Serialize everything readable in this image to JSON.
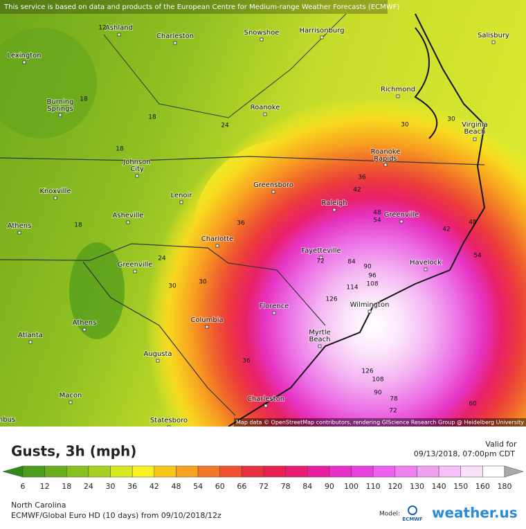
{
  "header": {
    "notice": "This service is based on data and products of the European Centre for Medium-range Weather Forecasts (ECMWF)"
  },
  "map": {
    "attribution": "Map data © OpenStreetMap contributors, rendering GIScience Research Group @ Heidelberg University",
    "cities": [
      [
        "Ashland"
      ],
      [
        "Charleston"
      ],
      [
        "Snowshoe"
      ],
      [
        "Harrisonburg"
      ],
      [
        "Salisbury"
      ],
      [
        "Lexington"
      ],
      [
        "Richmond"
      ],
      [
        "Burning",
        "Springs"
      ],
      [
        "Roanoke"
      ],
      [
        "Virginia",
        "Beach"
      ],
      [
        "Roanoke",
        "Rapids"
      ],
      [
        "Johnson",
        "City"
      ],
      [
        "Greensboro"
      ],
      [
        "Knoxville"
      ],
      [
        "Lenoir"
      ],
      [
        "Raleigh"
      ],
      [
        "Asheville"
      ],
      [
        "Greenville"
      ],
      [
        "Athens"
      ],
      [
        "Charlotte"
      ],
      [
        "Fayetteville"
      ],
      [
        "Havelock"
      ],
      [
        "Greenville"
      ],
      [
        "Wilmington"
      ],
      [
        "Florence"
      ],
      [
        "Athens"
      ],
      [
        "Columbia"
      ],
      [
        "Myrtle",
        "Beach"
      ],
      [
        "Atlanta"
      ],
      [
        "Augusta"
      ],
      [
        "Macon"
      ],
      [
        "Charleston"
      ],
      [
        "Statesboro"
      ],
      [
        "nbus"
      ]
    ],
    "contour_labels": [
      12,
      18,
      18,
      24,
      18,
      30,
      30,
      36,
      42,
      48,
      54,
      42,
      48,
      54,
      36,
      18,
      24,
      30,
      30,
      72,
      84,
      90,
      96,
      108,
      114,
      126,
      126,
      108,
      90,
      78,
      72,
      60,
      36
    ]
  },
  "legend": {
    "title": "Gusts, 3h (mph)",
    "valid_label": "Valid for",
    "valid_time": "09/13/2018, 07:00pm CDT",
    "labels": [
      6,
      12,
      18,
      24,
      30,
      36,
      42,
      48,
      54,
      60,
      66,
      72,
      78,
      84,
      90,
      100,
      110,
      120,
      130,
      140,
      150,
      160,
      180
    ],
    "colors": [
      "#2e8b17",
      "#4c9e1a",
      "#6aae1e",
      "#88c020",
      "#a8d020",
      "#d8e820",
      "#f8f020",
      "#f8c818",
      "#f8a020",
      "#f07828",
      "#f05030",
      "#e83040",
      "#e82050",
      "#e81c70",
      "#e820a0",
      "#e830c8",
      "#e840e0",
      "#f060f0",
      "#f080f0",
      "#f0a0f0",
      "#f8c0f8",
      "#f8e0f8",
      "#ffffff",
      "#aaaaaa"
    ]
  },
  "footer": {
    "region": "North Carolina",
    "model_run": "ECMWF/Global Euro HD (10 days) from 09/10/2018/12z",
    "model_label": "Model:",
    "model_logo": "ECMWF",
    "brand": "weather.us"
  }
}
